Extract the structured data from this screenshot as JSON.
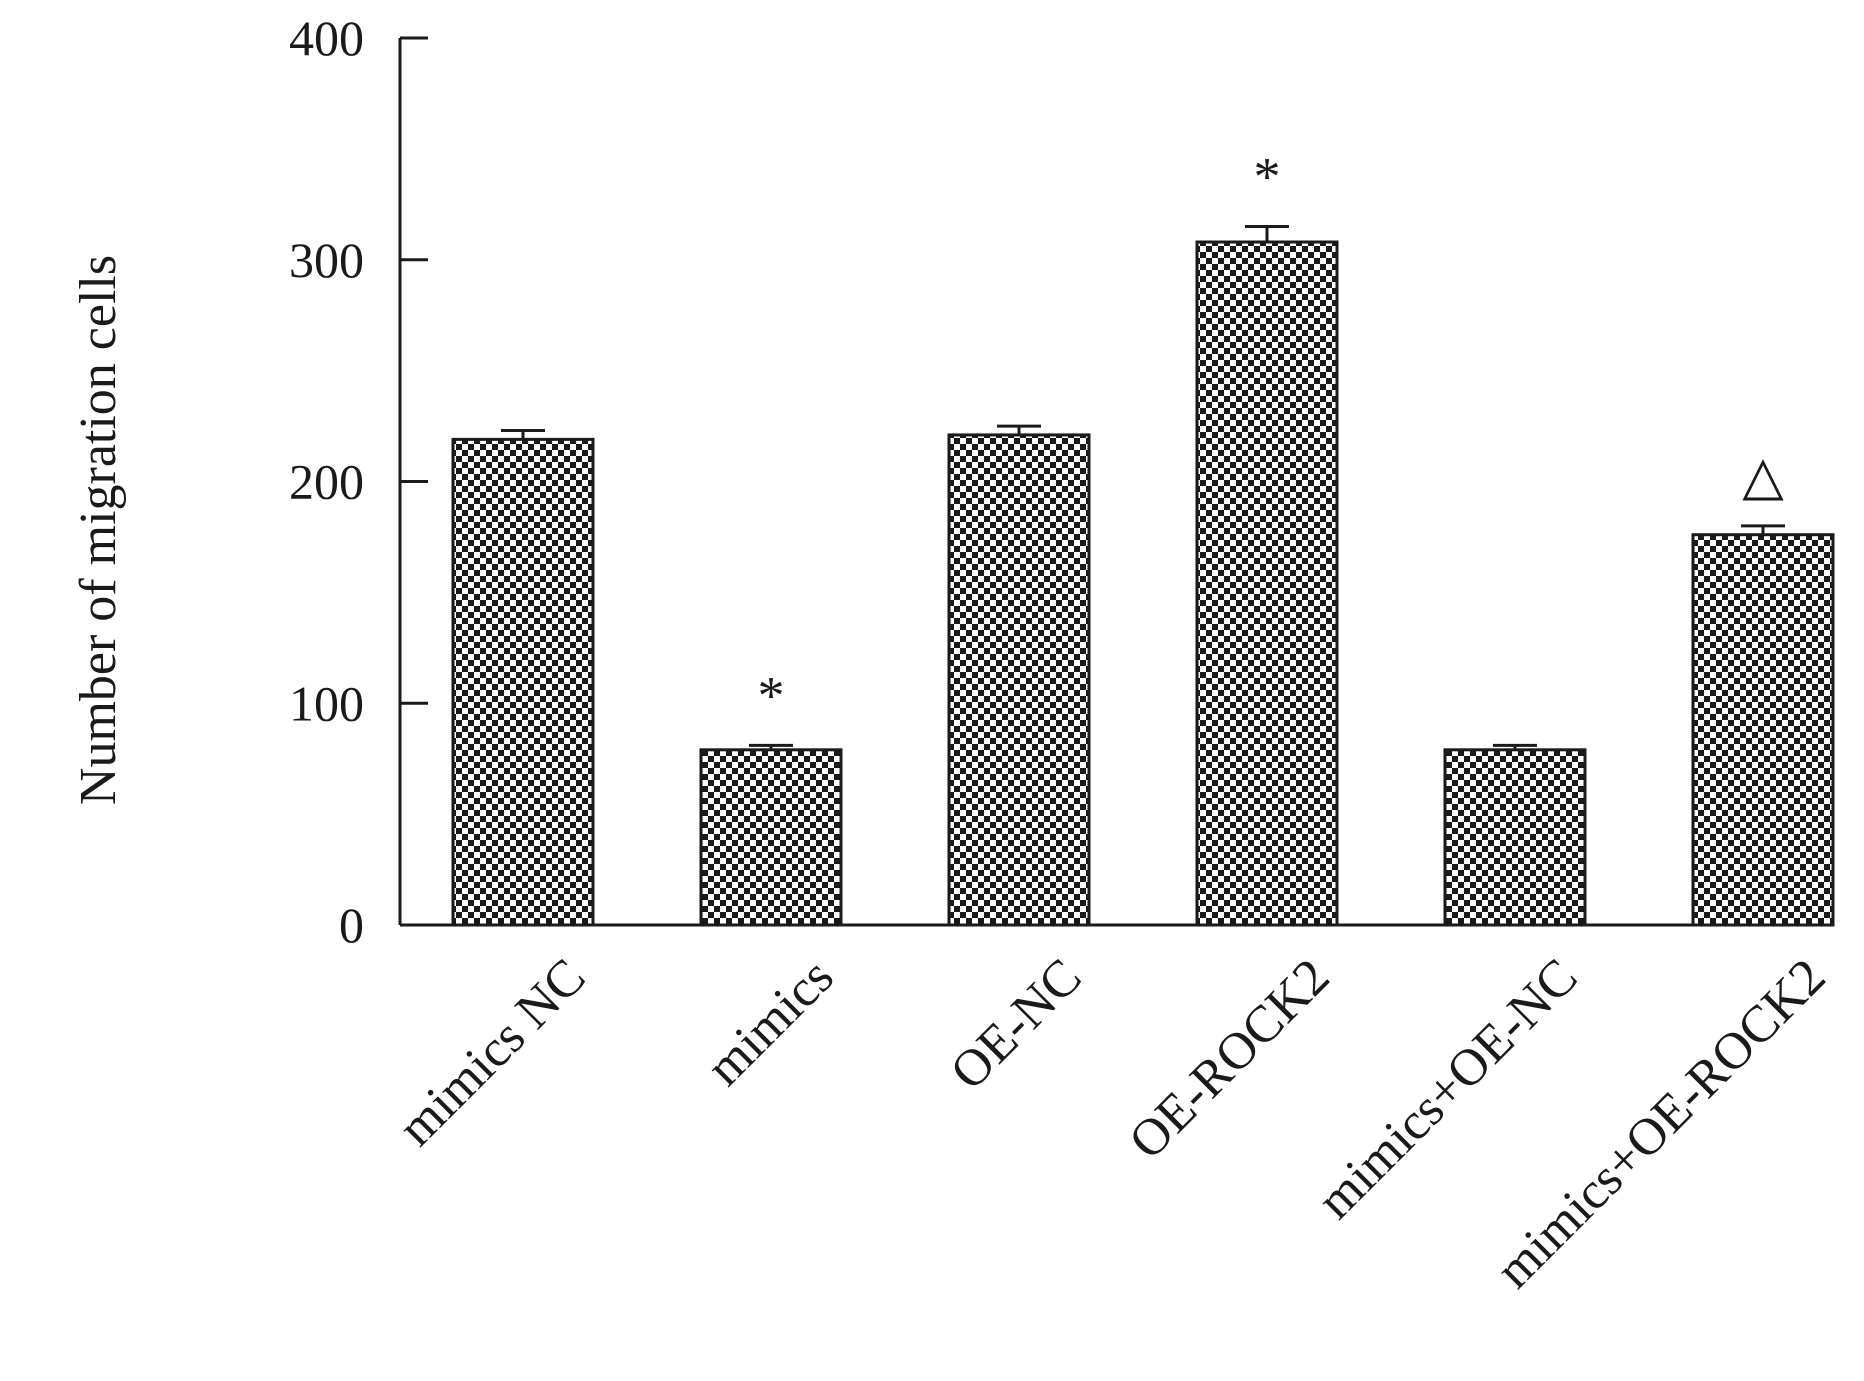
{
  "chart_data": {
    "type": "bar",
    "title": "",
    "xlabel": "",
    "ylabel": "Number of migration cells",
    "categories": [
      "mimics NC",
      "mimics",
      "OE-NC",
      "OE-ROCK2",
      "mimics+OE-NC",
      "mimics+OE-ROCK2"
    ],
    "values": [
      219,
      79,
      221,
      308,
      79,
      176
    ],
    "errors": [
      4,
      2,
      4,
      7,
      2,
      4
    ],
    "annotations": [
      "",
      "*",
      "",
      "*",
      "",
      "△"
    ],
    "ylim": [
      0,
      400
    ],
    "yticks": [
      0,
      100,
      200,
      300,
      400
    ],
    "grid": false,
    "bar_fill": "checkerboard",
    "colors": {
      "bar_dark": "#1a1a1a",
      "bar_light": "#ffffff",
      "axis": "#1a1a1a"
    }
  }
}
